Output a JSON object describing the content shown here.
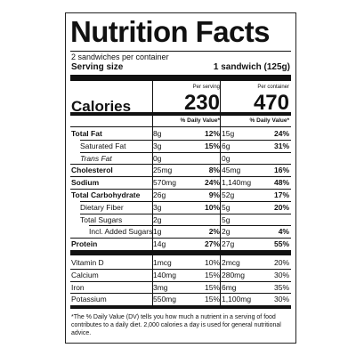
{
  "title": "Nutrition Facts",
  "servings": "2 sandwiches per container",
  "serving_size_label": "Serving size",
  "serving_size": "1 sandwich (125g)",
  "column_headers": [
    "Per serving",
    "Per container"
  ],
  "calories_label": "Calories",
  "calories": [
    230,
    470
  ],
  "daily_value_headers": [
    "% Daily Value*",
    "% Daily Value*"
  ],
  "rows": [
    [
      "Total Fat",
      "8g",
      "12%",
      "15g",
      "24%"
    ],
    [
      "Saturated Fat",
      "3g",
      "15%",
      "6g",
      "31%"
    ],
    [
      "Trans Fat",
      "0g",
      null,
      "0g",
      null
    ],
    [
      "Cholesterol",
      "25mg",
      "8%",
      "45mg",
      "16%"
    ],
    [
      "Sodium",
      "570mg",
      "24%",
      "1,140mg",
      "48%"
    ],
    [
      "Total Carbohydrate",
      "26g",
      "9%",
      "52g",
      "17%"
    ],
    [
      "Dietary Fiber",
      "3g",
      "10%",
      "5g",
      "20%"
    ],
    [
      "Total Sugars",
      "2g",
      null,
      "5g",
      null
    ],
    [
      "Incl. Added Sugars",
      "1g",
      "2%",
      "2g",
      "4%"
    ],
    [
      "Protein",
      "14g",
      "27%",
      "27g",
      "55%"
    ],
    [
      "Vitamin D",
      "1mcg",
      "10%",
      "2mcg",
      "20%"
    ],
    [
      "Calcium",
      "140mg",
      "15%",
      "280mg",
      "30%"
    ],
    [
      "Iron",
      "3mg",
      "15%",
      "6mg",
      "35%"
    ],
    [
      "Potassium",
      "550mg",
      "15%",
      "1,100mg",
      "30%"
    ]
  ],
  "footnote": "*The % Daily Value (DV) tells you how much a nutrient in a serving of food contributes to a daily diet. 2,000 calories a day is used for general nutritional advice."
}
